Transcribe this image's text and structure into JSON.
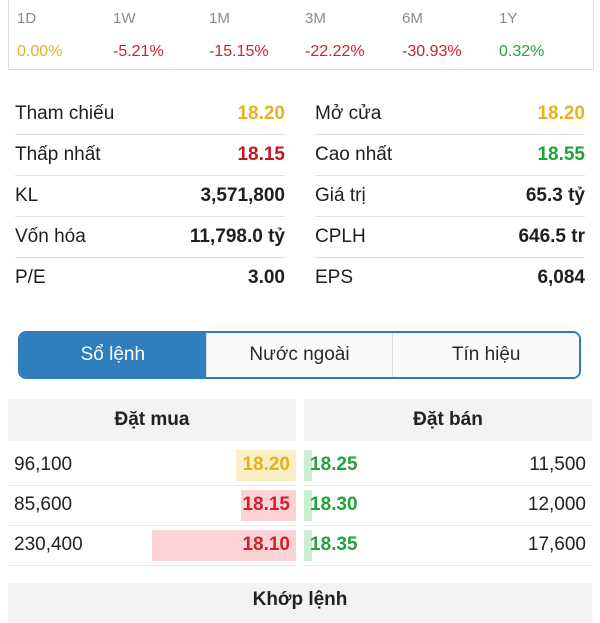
{
  "performance": [
    {
      "label": "1D",
      "value": "0.00%",
      "tone": "yellow"
    },
    {
      "label": "1W",
      "value": "-5.21%",
      "tone": "red"
    },
    {
      "label": "1M",
      "value": "-15.15%",
      "tone": "red"
    },
    {
      "label": "3M",
      "value": "-22.22%",
      "tone": "red"
    },
    {
      "label": "6M",
      "value": "-30.93%",
      "tone": "red"
    },
    {
      "label": "1Y",
      "value": "0.32%",
      "tone": "green"
    }
  ],
  "stats": {
    "left": [
      {
        "label": "Tham chiếu",
        "value": "18.20",
        "tone": "yellow"
      },
      {
        "label": "Thấp nhất",
        "value": "18.15",
        "tone": "red"
      },
      {
        "label": "KL",
        "value": "3,571,800",
        "tone": "default"
      },
      {
        "label": "Vốn hóa",
        "value": "11,798.0 tỷ",
        "tone": "default"
      },
      {
        "label": "P/E",
        "value": "3.00",
        "tone": "default"
      }
    ],
    "right": [
      {
        "label": "Mở cửa",
        "value": "18.20",
        "tone": "yellow"
      },
      {
        "label": "Cao nhất",
        "value": "18.55",
        "tone": "green"
      },
      {
        "label": "Giá trị",
        "value": "65.3 tỷ",
        "tone": "default"
      },
      {
        "label": "CPLH",
        "value": "646.5 tr",
        "tone": "default"
      },
      {
        "label": "EPS",
        "value": "6,084",
        "tone": "default"
      }
    ]
  },
  "tabs": [
    {
      "label": "Sổ lệnh",
      "active": true
    },
    {
      "label": "Nước ngoài",
      "active": false
    },
    {
      "label": "Tín hiệu",
      "active": false
    }
  ],
  "order_book": {
    "buy_title": "Đặt mua",
    "sell_title": "Đặt bán",
    "buy": [
      {
        "volume": "96,100",
        "price": "18.20",
        "tone": "yellow",
        "depth": 0.21
      },
      {
        "volume": "85,600",
        "price": "18.15",
        "tone": "red",
        "depth": 0.19
      },
      {
        "volume": "230,400",
        "price": "18.10",
        "tone": "red",
        "depth": 0.5
      }
    ],
    "sell": [
      {
        "price": "18.25",
        "volume": "11,500",
        "tone": "green",
        "depth": 0.02
      },
      {
        "price": "18.30",
        "volume": "12,000",
        "tone": "green",
        "depth": 0.02
      },
      {
        "price": "18.35",
        "volume": "17,600",
        "tone": "green",
        "depth": 0.02
      }
    ]
  },
  "matched_title": "Khớp lệnh",
  "colors": {
    "yellow": "#e8b21a",
    "red": "#c8161f",
    "green": "#1fa337",
    "accent": "#2f7fbf",
    "buy_bar_yellow": "#fbefc6",
    "buy_bar_red": "#fbd3d6",
    "sell_bar_green": "#c9eecf"
  }
}
